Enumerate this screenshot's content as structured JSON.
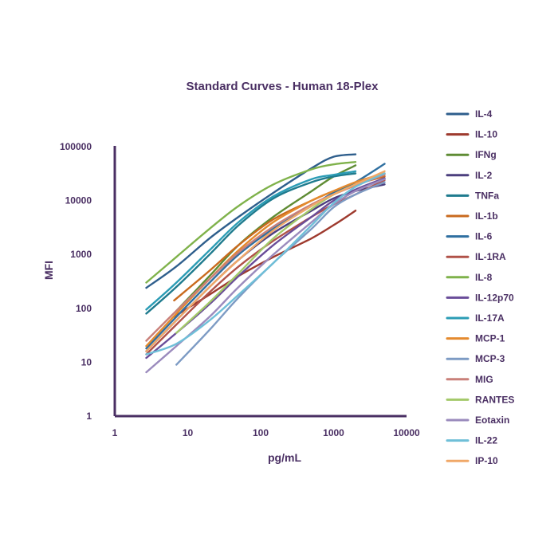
{
  "chart_data": {
    "type": "line",
    "title": "Standard Curves - Human 18-Plex",
    "xlabel": "pg/mL",
    "ylabel": "MFI",
    "xscale": "log",
    "yscale": "log",
    "xlim": [
      1,
      10000
    ],
    "ylim": [
      1,
      100000
    ],
    "xticks": [
      "1",
      "10",
      "100",
      "1000",
      "10000"
    ],
    "yticks": [
      "1",
      "10",
      "100",
      "1000",
      "10000",
      "100000"
    ],
    "grid": false,
    "legend": "right",
    "series": [
      {
        "name": "IL-4",
        "color": "#2e5e8c",
        "x": [
          2.7,
          7,
          20,
          50,
          150,
          500,
          1000,
          2000
        ],
        "y": [
          240,
          600,
          2000,
          5000,
          14000,
          40000,
          65000,
          72000
        ]
      },
      {
        "name": "IL-10",
        "color": "#9e3a2e",
        "x": [
          6.5,
          20,
          50,
          150,
          500,
          1000,
          2000
        ],
        "y": [
          70,
          180,
          400,
          900,
          2000,
          3500,
          6500
        ]
      },
      {
        "name": "IFNg",
        "color": "#5f8c34",
        "x": [
          7,
          20,
          50,
          150,
          500,
          1000,
          2000
        ],
        "y": [
          90,
          400,
          1500,
          5000,
          15000,
          28000,
          45000
        ]
      },
      {
        "name": "IL-2",
        "color": "#4b3f7e",
        "x": [
          2.7,
          7,
          20,
          50,
          150,
          500,
          1000,
          2000,
          5000
        ],
        "y": [
          16,
          60,
          250,
          800,
          2500,
          6500,
          11000,
          15000,
          20000
        ]
      },
      {
        "name": "TNFa",
        "color": "#1f7b8e",
        "x": [
          2.7,
          7,
          20,
          50,
          150,
          500,
          1000,
          2000
        ],
        "y": [
          80,
          250,
          1000,
          3500,
          11000,
          22000,
          28000,
          32000
        ]
      },
      {
        "name": "IL-1b",
        "color": "#c96a1e",
        "x": [
          6.5,
          20,
          50,
          150,
          500,
          1000,
          2000,
          5000
        ],
        "y": [
          140,
          500,
          1500,
          4500,
          10000,
          15000,
          20000,
          28000
        ]
      },
      {
        "name": "IL-6",
        "color": "#2f6fa0",
        "x": [
          2.7,
          7,
          20,
          50,
          150,
          500,
          1000,
          2000,
          5000
        ],
        "y": [
          18,
          70,
          300,
          1000,
          3000,
          8000,
          14000,
          22000,
          48000
        ]
      },
      {
        "name": "IL-1RA",
        "color": "#b05249",
        "x": [
          2.7,
          7,
          20,
          50,
          150,
          500,
          1000,
          2000,
          5000
        ],
        "y": [
          14,
          50,
          200,
          600,
          1800,
          5000,
          8500,
          13000,
          24000
        ]
      },
      {
        "name": "IL-8",
        "color": "#7fb24b",
        "x": [
          2.7,
          7,
          20,
          50,
          150,
          500,
          1000,
          2000
        ],
        "y": [
          300,
          900,
          3000,
          8000,
          20000,
          38000,
          47000,
          52000
        ]
      },
      {
        "name": "IL-12p70",
        "color": "#6a4d99",
        "x": [
          2.7,
          7,
          20,
          50,
          150,
          500,
          1000,
          2000,
          5000
        ],
        "y": [
          12,
          35,
          120,
          400,
          1500,
          5000,
          10000,
          16000,
          26000
        ]
      },
      {
        "name": "IL-17A",
        "color": "#2b9cb5",
        "x": [
          2.7,
          7,
          20,
          50,
          150,
          500,
          1000,
          2000
        ],
        "y": [
          95,
          300,
          1200,
          4000,
          12000,
          25000,
          30000,
          35000
        ]
      },
      {
        "name": "MCP-1",
        "color": "#e48a2e",
        "x": [
          2.7,
          7,
          20,
          50,
          150,
          500,
          1000,
          2000,
          5000
        ],
        "y": [
          20,
          80,
          350,
          1200,
          4000,
          10000,
          15000,
          22000,
          32000
        ]
      },
      {
        "name": "MCP-3",
        "color": "#7d9bc4",
        "x": [
          7,
          20,
          50,
          150,
          500,
          1000,
          2000,
          5000
        ],
        "y": [
          9,
          40,
          160,
          700,
          3000,
          7500,
          13000,
          22000
        ]
      },
      {
        "name": "MIG",
        "color": "#c9807a",
        "x": [
          2.7,
          7,
          20,
          50,
          150,
          500,
          1000,
          2000,
          5000
        ],
        "y": [
          25,
          90,
          350,
          1100,
          3300,
          8500,
          13000,
          19000,
          30000
        ]
      },
      {
        "name": "RANTES",
        "color": "#a4c96a",
        "x": [
          7,
          20,
          50,
          150,
          500,
          1000,
          2000
        ],
        "y": [
          35,
          130,
          450,
          2000,
          7000,
          13000,
          20000
        ]
      },
      {
        "name": "Eotaxin",
        "color": "#9b8bbd",
        "x": [
          2.7,
          7,
          20,
          50,
          150,
          500,
          1000,
          2000,
          5000
        ],
        "y": [
          6.5,
          20,
          70,
          250,
          1000,
          4000,
          8500,
          15000,
          25000
        ]
      },
      {
        "name": "IL-22",
        "color": "#6fbfd8",
        "x": [
          2.7,
          7,
          20,
          50,
          150,
          500,
          1000,
          2000,
          5000
        ],
        "y": [
          14,
          22,
          60,
          180,
          700,
          3500,
          9000,
          18000,
          32000
        ]
      },
      {
        "name": "IP-10",
        "color": "#f0a868",
        "x": [
          2.7,
          7,
          20,
          50,
          150,
          500,
          1000,
          2000,
          5000
        ],
        "y": [
          16,
          60,
          250,
          800,
          2800,
          8000,
          13000,
          20000,
          35000
        ]
      }
    ]
  }
}
